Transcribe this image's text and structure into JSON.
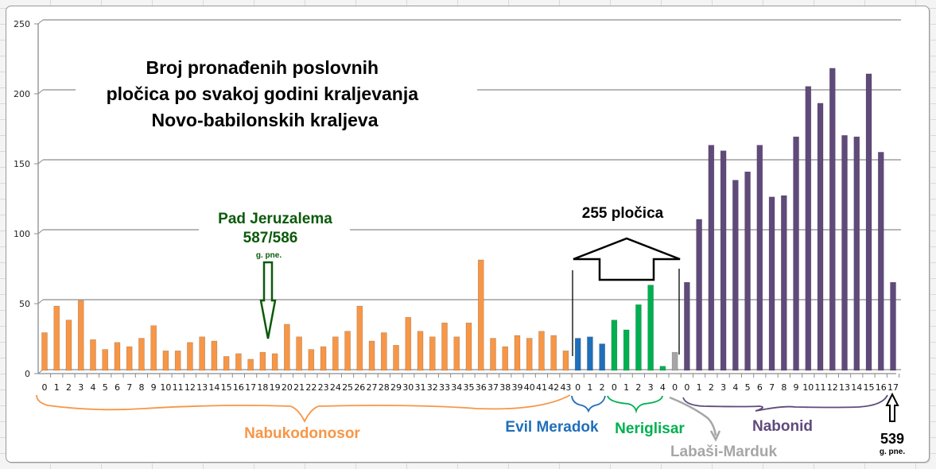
{
  "chart_data": {
    "type": "bar",
    "title": "Broj pronađenih poslovnih pločica po svakoj godini kraljevanja Novo-babilonskih kraljeva",
    "title_lines": [
      "Broj pronađenih poslovnih",
      "pločica po svakoj godini kraljevanja",
      "Novo-babilonskih kraljeva"
    ],
    "xlabel": "",
    "ylabel": "",
    "ylim": [
      0,
      250
    ],
    "yticks": [
      0,
      50,
      100,
      150,
      200,
      250
    ],
    "grid": true,
    "legend": "none",
    "groups": [
      {
        "name": "Nabukodonosor",
        "color": "#f79646",
        "categories": [
          "0",
          "1",
          "2",
          "3",
          "4",
          "5",
          "6",
          "7",
          "8",
          "9",
          "10",
          "11",
          "12",
          "13",
          "14",
          "15",
          "16",
          "17",
          "18",
          "19",
          "20",
          "21",
          "22",
          "23",
          "24",
          "25",
          "26",
          "27",
          "28",
          "29",
          "30",
          "31",
          "32",
          "33",
          "34",
          "35",
          "36",
          "37",
          "38",
          "39",
          "40",
          "41",
          "42",
          "43"
        ],
        "values": [
          27,
          46,
          36,
          50,
          22,
          15,
          20,
          17,
          23,
          32,
          14,
          14,
          20,
          24,
          21,
          10,
          12,
          8,
          13,
          12,
          33,
          24,
          15,
          17,
          24,
          28,
          46,
          21,
          27,
          18,
          38,
          28,
          24,
          34,
          24,
          34,
          79,
          23,
          17,
          25,
          23,
          28,
          25,
          14
        ]
      },
      {
        "name": "Evil Meradok",
        "color": "#1f6fba",
        "categories": [
          "0",
          "1",
          "2"
        ],
        "values": [
          23,
          24,
          19
        ]
      },
      {
        "name": "Neriglisar",
        "color": "#00b050",
        "categories": [
          "0",
          "1",
          "2",
          "3",
          "4"
        ],
        "values": [
          36,
          29,
          47,
          61,
          3
        ]
      },
      {
        "name": "Labaši-Marduk",
        "color": "#a6a6a6",
        "categories": [
          "0"
        ],
        "values": [
          13
        ]
      },
      {
        "name": "Nabonid",
        "color": "#604a7b",
        "categories": [
          "0",
          "1",
          "2",
          "3",
          "4",
          "5",
          "6",
          "7",
          "8",
          "9",
          "10",
          "11",
          "12",
          "13",
          "14",
          "15",
          "16",
          "17"
        ],
        "values": [
          63,
          108,
          161,
          157,
          136,
          142,
          161,
          124,
          125,
          167,
          203,
          191,
          216,
          168,
          167,
          212,
          156,
          63
        ]
      }
    ],
    "annotations": [
      {
        "text": "Pad Jeruzalema",
        "sub": "587/586",
        "small": "g. pne.",
        "at": "Nabukodonosor 18/19",
        "color": "#0a5a0a"
      },
      {
        "text": "255 pločica",
        "spans": [
          "Evil Meradok",
          "Neriglisar",
          "Labaši-Marduk"
        ]
      },
      {
        "text": "539",
        "small": "g. pne.",
        "at": "Nabonid 17"
      }
    ]
  },
  "annotations": {
    "jerusalem_title": "Pad Jeruzalema",
    "jerusalem_year": "587/586",
    "jerusalem_era": "g. pne.",
    "total_label": "255 pločica",
    "end_year": "539",
    "end_era": "g. pne."
  },
  "kings": {
    "nabukodonosor": "Nabukodonosor",
    "evil_meradok": "Evil Meradok",
    "neriglisar": "Neriglisar",
    "labasi": "Labaši-Marduk",
    "nabonid": "Nabonid"
  }
}
